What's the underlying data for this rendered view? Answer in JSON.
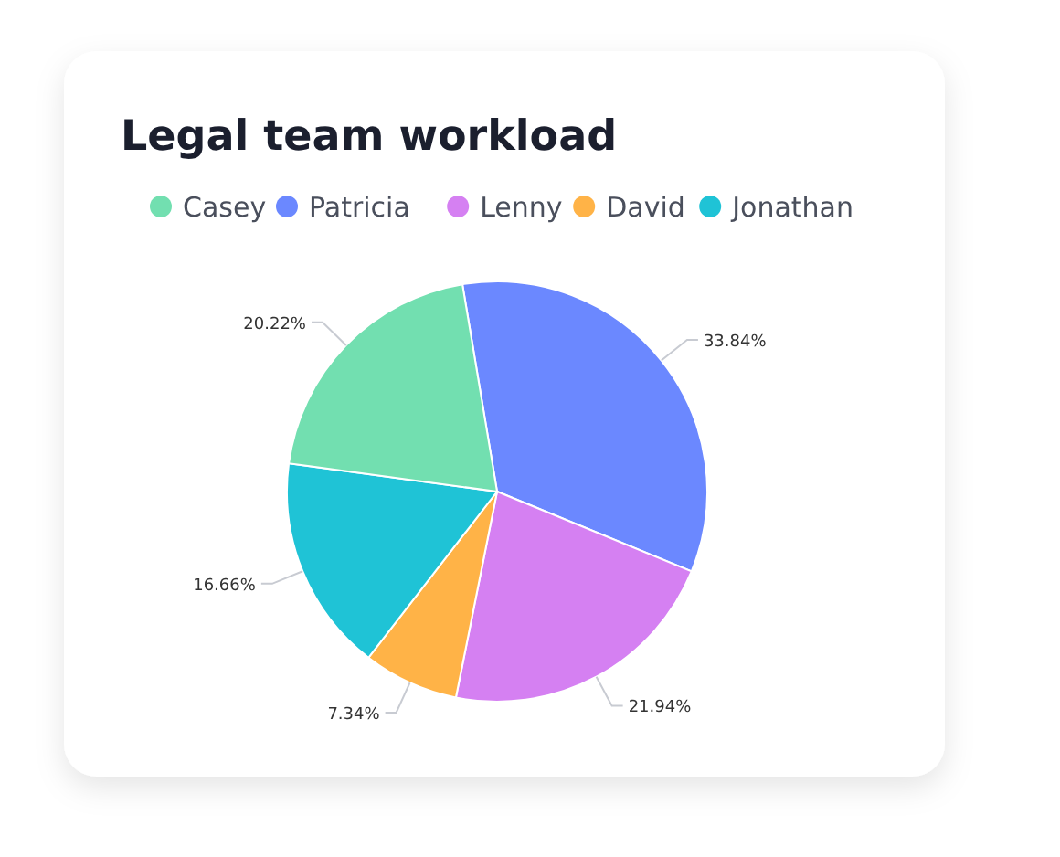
{
  "chart_data": {
    "type": "pie",
    "title": "Legal team workload",
    "categories": [
      "Casey",
      "Patricia",
      "Lenny",
      "David",
      "Jonathan"
    ],
    "values": [
      20.22,
      33.84,
      21.94,
      7.34,
      16.66
    ],
    "colors": [
      "#72dfb0",
      "#6b88ff",
      "#d580f2",
      "#ffb347",
      "#1fc3d6"
    ],
    "value_labels": [
      "20.22%",
      "33.84%",
      "21.94%",
      "7.34%",
      "16.66%"
    ],
    "legend": "top"
  }
}
